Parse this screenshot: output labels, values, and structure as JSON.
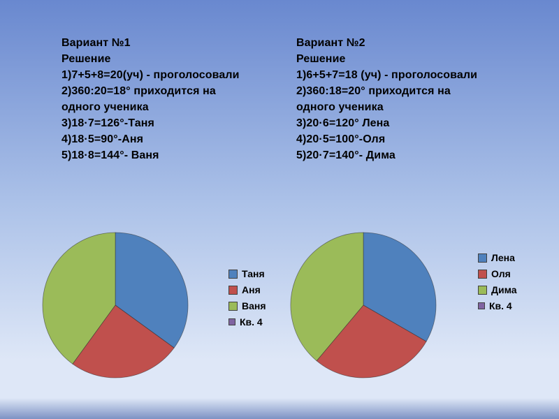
{
  "slide": {
    "background": {
      "top": "#6988cf",
      "middle": "#abc1e8",
      "light": "#dee7f7",
      "bottom": "#7d92c4"
    }
  },
  "variant1": {
    "title": "Вариант №1",
    "heading": "Решение",
    "lines": [
      "1)7+5+8=20(уч) - проголосовали",
      "2)360:20=18° приходится на",
      "одного ученика",
      "3)18·7=126°-Таня",
      "4)18·5=90°-Аня",
      "5)18·8=144°- Ваня"
    ]
  },
  "variant2": {
    "title": "Вариант №2",
    "heading": "Решение",
    "lines": [
      "1)6+5+7=18 (уч) - проголосовали",
      "2)360:18=20° приходится на",
      "одного ученика",
      "3)20·6=120° Лена",
      "4)20·5=100°-Оля",
      "5)20·7=140°- Дима"
    ]
  },
  "chart_data": [
    {
      "type": "pie",
      "labels": [
        "Таня",
        "Аня",
        "Ваня",
        "Кв. 4"
      ],
      "values_degrees": [
        126,
        90,
        144,
        0
      ],
      "values_students": [
        7,
        5,
        8,
        0
      ],
      "colors": [
        "#4f81bd",
        "#c0504d",
        "#9bbb59",
        "#8064a2"
      ],
      "legend_position": "right",
      "start_angle_deg": 0,
      "direction": "clockwise"
    },
    {
      "type": "pie",
      "labels": [
        "Лена",
        "Оля",
        "Дима",
        "Кв. 4"
      ],
      "values_degrees": [
        120,
        100,
        140,
        0
      ],
      "values_students": [
        6,
        5,
        7,
        0
      ],
      "colors": [
        "#4f81bd",
        "#c0504d",
        "#9bbb59",
        "#8064a2"
      ],
      "legend_position": "right",
      "start_angle_deg": 0,
      "direction": "clockwise"
    }
  ]
}
